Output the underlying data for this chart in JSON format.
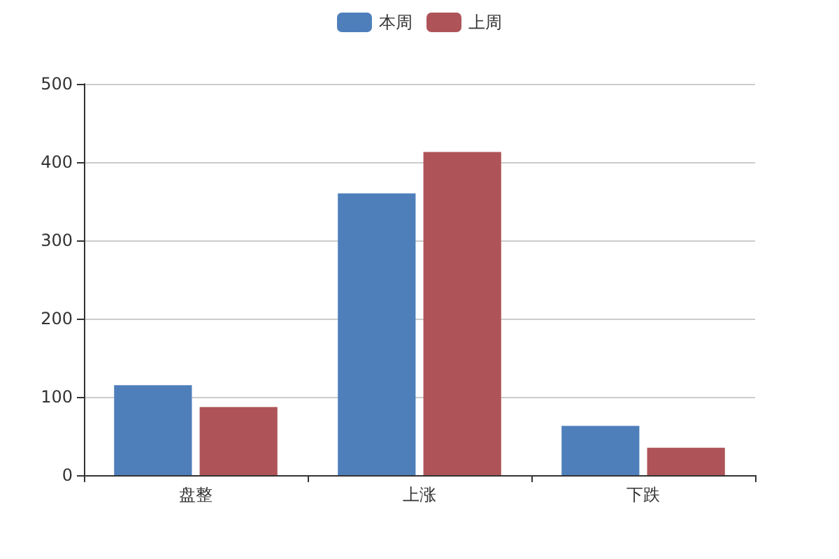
{
  "chart_data": {
    "type": "bar",
    "categories": [
      "盘整",
      "上涨",
      "下跌"
    ],
    "series": [
      {
        "name": "本周",
        "color": "#4e7fbb",
        "values": [
          115,
          360,
          63
        ]
      },
      {
        "name": "上周",
        "color": "#ae5458",
        "values": [
          87,
          413,
          35
        ]
      }
    ],
    "ylim": [
      0,
      500
    ],
    "yticks": [
      0,
      100,
      200,
      300,
      400,
      500
    ],
    "grid": "y",
    "legend": "top"
  }
}
